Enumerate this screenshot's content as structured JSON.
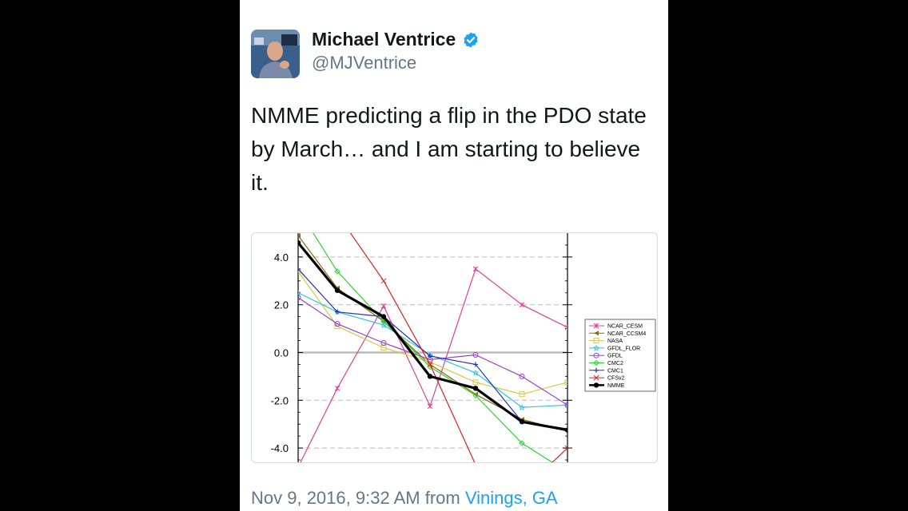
{
  "user": {
    "name": "Michael Ventrice",
    "handle": "@MJVentrice",
    "verified": true,
    "avatar_icon": "avatar-photo",
    "verified_icon": "verified-badge-icon",
    "verified_color": "#1da1f2"
  },
  "tweet": {
    "text": "NMME predicting a flip in the PDO state by March… and I am starting to believe it."
  },
  "meta": {
    "timestamp": "Nov 9, 2016, 9:32 AM",
    "from_word": "from",
    "location": "Vinings, GA",
    "location_color": "#1da1f2"
  },
  "chart_data": {
    "type": "line",
    "x": [
      1,
      2,
      3,
      4,
      5,
      6,
      7,
      8
    ],
    "ylim": [
      -4.6,
      5.0
    ],
    "yticks": [
      "4.0",
      "2.0",
      "0.0",
      "-2.0",
      "-4.0"
    ],
    "ytick_values": [
      4,
      2,
      0,
      -2,
      -4
    ],
    "grid": "dashed horizontal",
    "legend_placement": "right",
    "series": [
      {
        "name": "NCAR_CESM",
        "color": "#e0409a",
        "values": [
          -4.8,
          -1.5,
          1.95,
          -2.25,
          3.5,
          2.0,
          1.05,
          null
        ]
      },
      {
        "name": "NCAR_CCSM4",
        "color": "#8b6914",
        "values": [
          4.9,
          2.7,
          1.3,
          -0.5,
          -1.75,
          -2.8,
          -3.3,
          null
        ]
      },
      {
        "name": "NASA",
        "color": "#d6c93e",
        "values": [
          3.4,
          1.1,
          0.2,
          -0.4,
          -1.25,
          -1.75,
          -1.25,
          null
        ]
      },
      {
        "name": "GFDL_FLOR",
        "color": "#2ec4d9",
        "values": [
          2.5,
          1.7,
          1.15,
          -0.1,
          -0.85,
          -2.3,
          -2.2,
          null
        ]
      },
      {
        "name": "GFDL",
        "color": "#9b3fd1",
        "values": [
          2.3,
          1.2,
          0.4,
          -0.3,
          -0.1,
          -1.0,
          -2.2,
          null
        ]
      },
      {
        "name": "CMC2",
        "color": "#2bd42b",
        "values": [
          6.0,
          3.4,
          1.3,
          -0.6,
          -1.8,
          -3.8,
          -5.0,
          null
        ]
      },
      {
        "name": "CMC1",
        "color": "#2233bb",
        "values": [
          3.5,
          1.7,
          1.5,
          -0.15,
          -0.5,
          -2.9,
          -3.2,
          null
        ]
      },
      {
        "name": "CFSv2",
        "color": "#e02020",
        "values": [
          null,
          5.8,
          3.0,
          -0.5,
          -4.7,
          -5.8,
          -4.0,
          null
        ]
      },
      {
        "name": "NMME",
        "color": "#000000",
        "values": [
          4.6,
          2.6,
          1.5,
          -1.0,
          -1.5,
          -2.9,
          -3.25,
          null
        ]
      }
    ]
  }
}
